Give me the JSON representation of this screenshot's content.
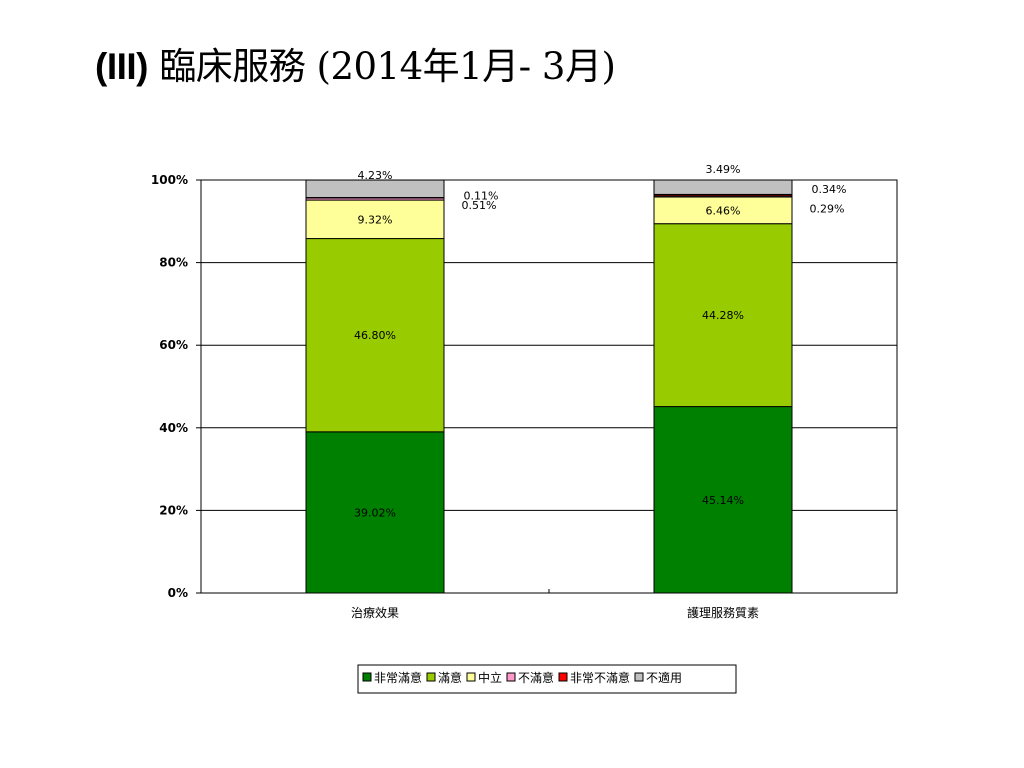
{
  "title": {
    "prefix": "(III)",
    "text": "臨床服務 (2014年1月- 3月)"
  },
  "chart_data": {
    "type": "bar",
    "stacked": true,
    "percent_stacked": true,
    "categories": [
      "治療效果",
      "護理服務質素"
    ],
    "series": [
      {
        "name": "非常滿意",
        "color": "#008000",
        "values": [
          39.02,
          45.14
        ],
        "labels": [
          "39.02%",
          "45.14%"
        ]
      },
      {
        "name": "滿意",
        "color": "#99cc00",
        "values": [
          46.8,
          44.28
        ],
        "labels": [
          "46.80%",
          "44.28%"
        ]
      },
      {
        "name": "中立",
        "color": "#ffff99",
        "values": [
          9.32,
          6.46
        ],
        "labels": [
          "9.32%",
          "6.46%"
        ]
      },
      {
        "name": "不滿意",
        "color": "#ff99cc",
        "values": [
          0.51,
          0.29
        ],
        "labels": [
          "0.51%",
          "0.29%"
        ]
      },
      {
        "name": "非常不滿意",
        "color": "#ff0000",
        "values": [
          0.11,
          0.34
        ],
        "labels": [
          "0.11%",
          "0.34%"
        ]
      },
      {
        "name": "不適用",
        "color": "#c0c0c0",
        "values": [
          4.23,
          3.49
        ],
        "labels": [
          "4.23%",
          "3.49%"
        ]
      }
    ],
    "y_ticks": [
      "0%",
      "20%",
      "40%",
      "60%",
      "80%",
      "100%"
    ],
    "ylim": [
      0,
      100
    ],
    "grid": true,
    "legend_position": "bottom"
  }
}
